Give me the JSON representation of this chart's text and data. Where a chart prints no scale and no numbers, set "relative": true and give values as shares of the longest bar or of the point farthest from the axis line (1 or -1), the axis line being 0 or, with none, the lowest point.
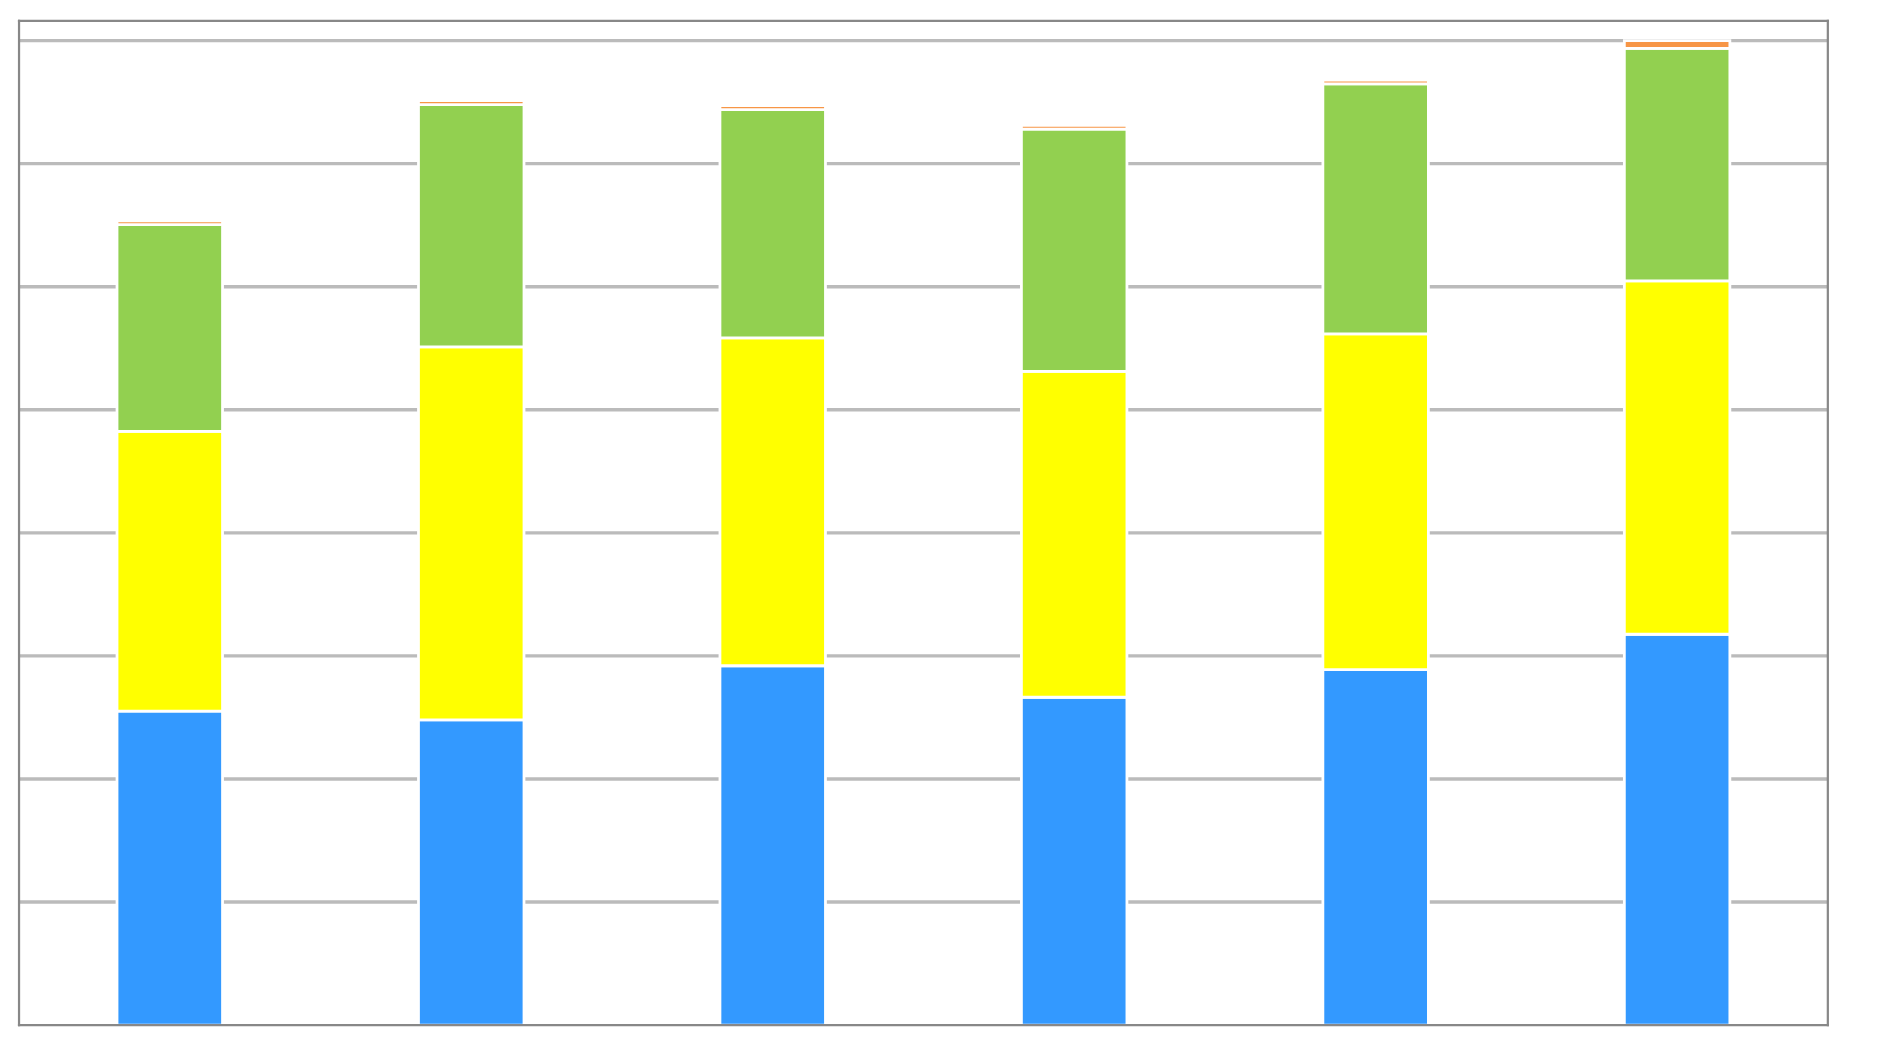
{
  "chart_data": {
    "type": "bar",
    "relative": true,
    "stacked": true,
    "grid": "y",
    "legend": false,
    "categories": [
      null,
      null,
      null,
      null,
      null,
      null
    ],
    "series": [
      {
        "color": "#3399ff",
        "values": [
          0.319,
          0.31,
          0.365,
          0.333,
          0.361,
          0.397
        ]
      },
      {
        "color": "#ffff00",
        "values": [
          0.284,
          0.379,
          0.333,
          0.331,
          0.341,
          0.359
        ]
      },
      {
        "color": "#92d050",
        "values": [
          0.21,
          0.246,
          0.232,
          0.246,
          0.254,
          0.236
        ]
      },
      {
        "color": "#f79646",
        "values": [
          0.004,
          0.004,
          0.004,
          0.004,
          0.004,
          0.008
        ]
      }
    ]
  }
}
